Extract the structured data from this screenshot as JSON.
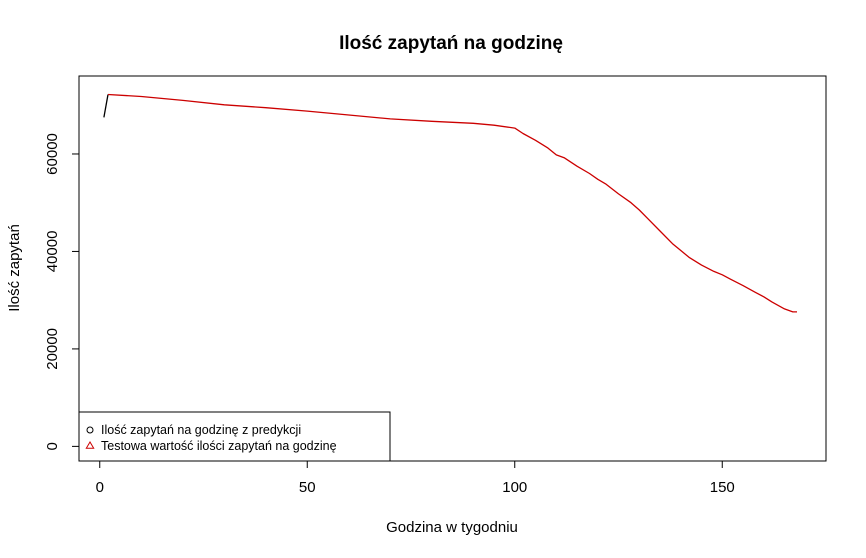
{
  "chart_data": {
    "type": "line",
    "title": "Ilość zapytań na godzinę",
    "xlabel": "Godzina w tygodniu",
    "ylabel": "Ilość zapytań",
    "xlim": [
      -5,
      175
    ],
    "ylim": [
      -3000,
      76000
    ],
    "x_ticks": [
      0,
      50,
      100,
      150
    ],
    "y_ticks": [
      0,
      20000,
      40000,
      60000
    ],
    "grid": false,
    "legend_position": "bottom-left",
    "legend": [
      {
        "label": "Ilość zapytań na godzinę z predykcji",
        "symbol": "circle",
        "color": "#000000"
      },
      {
        "label": "Testowa wartość ilości zapytań na godzinę",
        "symbol": "triangle",
        "color": "#cc0000"
      }
    ],
    "series": [
      {
        "name": "Ilość zapytań na godzinę z predykcji",
        "color": "#000000",
        "x": [
          1,
          2
        ],
        "values": [
          67500,
          72200
        ]
      },
      {
        "name": "Testowa wartość ilości zapytań na godzinę",
        "color": "#cc0000",
        "x": [
          2,
          10,
          20,
          30,
          40,
          50,
          60,
          70,
          80,
          90,
          95,
          100,
          102,
          105,
          108,
          110,
          112,
          115,
          118,
          120,
          122,
          125,
          128,
          130,
          132,
          135,
          138,
          140,
          142,
          145,
          148,
          150,
          152,
          155,
          158,
          160,
          162,
          165,
          167,
          168
        ],
        "values": [
          72200,
          71800,
          71000,
          70100,
          69500,
          68800,
          68000,
          67200,
          66700,
          66300,
          65900,
          65300,
          64200,
          62800,
          61200,
          59800,
          59200,
          57500,
          56000,
          54800,
          53800,
          51800,
          50000,
          48500,
          46800,
          44200,
          41600,
          40200,
          38800,
          37200,
          35900,
          35200,
          34300,
          33000,
          31600,
          30700,
          29600,
          28200,
          27600,
          27600
        ]
      }
    ]
  }
}
